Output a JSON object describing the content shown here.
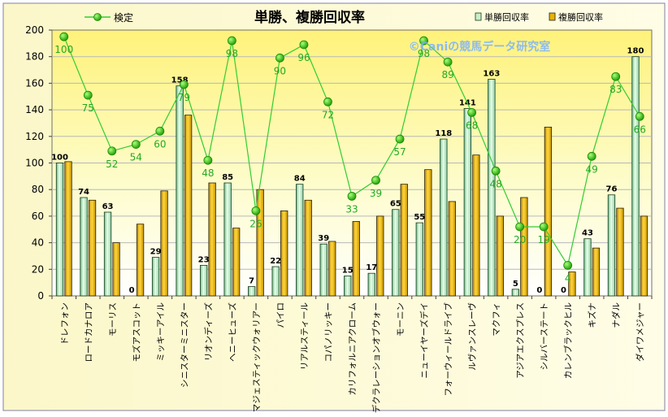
{
  "chart_data": {
    "type": "bar",
    "title": "単勝、複勝回収率",
    "watermark": "©Caniの競馬データ研究室",
    "ylim": [
      0,
      200
    ],
    "yticks": [
      0,
      20,
      40,
      60,
      80,
      100,
      120,
      140,
      160,
      180,
      200
    ],
    "legend": {
      "line": "検定",
      "bar1": "単勝回収率",
      "bar2": "複勝回収率"
    },
    "categories": [
      "ドレフォン",
      "ロードカナロア",
      "モーリス",
      "モズアスコット",
      "ミッキーアイル",
      "シニスターミニスター",
      "リオンディーズ",
      "ヘニーヒューズ",
      "マジェスティックウォリアー",
      "パイロ",
      "リアルスティール",
      "コパノリッキー",
      "カリフォルニアクローム",
      "デクラレーションオブウォー",
      "モーニン",
      "ニューイヤーズデイ",
      "フォーウィールドライブ",
      "ルヴァンスレーヴ",
      "マクフィ",
      "アジアエクスプレス",
      "シルバーステート",
      "カレンブラックヒル",
      "キズナ",
      "ナダル",
      "ダイワメジャー"
    ],
    "series": [
      {
        "name": "単勝回収率",
        "type": "bar",
        "color": "#c8f0c8",
        "values": [
          100,
          74,
          63,
          0,
          29,
          158,
          23,
          85,
          7,
          22,
          84,
          39,
          15,
          17,
          65,
          55,
          118,
          141,
          163,
          5,
          0,
          0,
          43,
          76,
          180
        ]
      },
      {
        "name": "複勝回収率",
        "type": "bar",
        "color": "#e8b400",
        "values": [
          101,
          72,
          40,
          54,
          79,
          136,
          85,
          51,
          80,
          64,
          72,
          41,
          56,
          60,
          84,
          95,
          71,
          106,
          60,
          74,
          127,
          18,
          36,
          66,
          60
        ]
      },
      {
        "name": "検定",
        "type": "line",
        "color": "#00c800",
        "values": [
          195,
          151,
          109,
          114,
          124,
          159,
          102,
          192,
          64,
          179,
          189,
          146,
          75,
          87,
          118,
          192,
          176,
          138,
          94,
          52,
          52,
          23,
          105,
          165,
          135
        ],
        "labels": [
          100,
          75,
          52,
          54,
          60,
          79,
          48,
          98,
          26,
          90,
          96,
          72,
          33,
          39,
          57,
          98,
          89,
          68,
          48,
          20,
          19,
          4,
          49,
          83,
          66
        ]
      }
    ]
  }
}
